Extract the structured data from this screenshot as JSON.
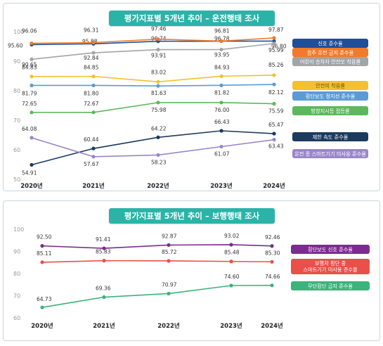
{
  "chart_data": [
    {
      "type": "line",
      "title": "평가지표별 5개년 추이 – 운전행태 조사",
      "x": [
        "2020년",
        "2021년",
        "2022년",
        "2023년",
        "2024년"
      ],
      "ylim": [
        50,
        100
      ],
      "yticks": [
        "100",
        "90",
        "80",
        "70",
        "60",
        "50"
      ],
      "grid": false,
      "legend_position": "right",
      "series": [
        {
          "name": "신호 준수율",
          "color": "#1f4e9a",
          "values": [
            95.6,
            95.88,
            96.74,
            96.78,
            96.8
          ]
        },
        {
          "name": "음주 운전 금지 준수율",
          "color": "#f07b2c",
          "values": [
            96.06,
            96.31,
            97.46,
            96.81,
            97.87
          ]
        },
        {
          "name": "어린이 승차자 안전모 착용률",
          "color": "#a4a4a4",
          "values": [
            90.65,
            92.84,
            93.91,
            93.95,
            95.99
          ]
        },
        {
          "name": "안전띠 착용률",
          "color": "#f2c12e",
          "values": [
            84.83,
            84.85,
            83.02,
            84.93,
            85.26
          ]
        },
        {
          "name": "횡단보도 정지선 준수율",
          "color": "#5b9bd5",
          "values": [
            81.79,
            81.8,
            81.63,
            81.82,
            82.12
          ]
        },
        {
          "name": "방향지시등 점등률",
          "color": "#5cb85c",
          "values": [
            72.65,
            72.67,
            75.98,
            76.0,
            75.59
          ]
        },
        {
          "name": "제한 속도 준수율",
          "color": "#1c3a5e",
          "values": [
            54.91,
            60.44,
            64.22,
            66.43,
            65.47
          ]
        },
        {
          "name": "운전 중 스마트기기 미사용 준수율",
          "color": "#9a86c8",
          "values": [
            64.08,
            57.67,
            58.23,
            61.07,
            63.43
          ]
        }
      ]
    },
    {
      "type": "line",
      "title": "평가지표별 5개년 추이 – 보행행태 조사",
      "x": [
        "2020년",
        "2021년",
        "2022년",
        "2023년",
        "2024년"
      ],
      "ylim": [
        60,
        100
      ],
      "yticks": [
        "100",
        "90",
        "80",
        "70",
        "60"
      ],
      "grid": false,
      "legend_position": "right",
      "series": [
        {
          "name": "횡단보도 신호 준수율",
          "color": "#7b2c8f",
          "values": [
            92.5,
            91.41,
            92.87,
            93.02,
            92.46
          ]
        },
        {
          "name": "보행자 횡단 중 스마트기기 미사용 준수율",
          "color": "#e8514a",
          "values": [
            85.11,
            85.83,
            85.72,
            85.48,
            85.3
          ]
        },
        {
          "name": "무단횡단 금지 준수율",
          "color": "#3bb37a",
          "values": [
            64.73,
            69.36,
            70.97,
            74.6,
            74.66
          ]
        }
      ]
    }
  ]
}
